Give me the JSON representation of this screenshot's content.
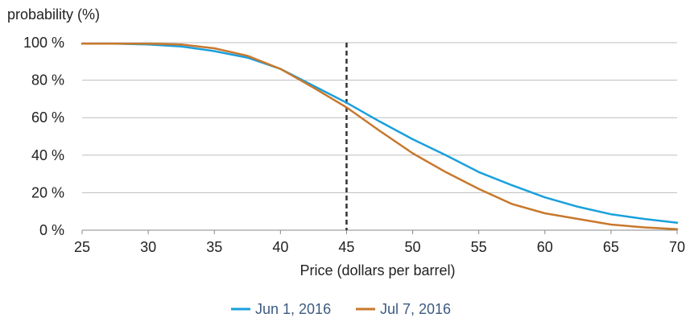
{
  "chart_data": {
    "type": "line",
    "ylabel": "probability (%)",
    "xlabel": "Price (dollars per barrel)",
    "xlim": [
      25,
      70
    ],
    "ylim": [
      0,
      100
    ],
    "x_ticks": [
      25,
      30,
      35,
      40,
      45,
      50,
      55,
      60,
      65,
      70
    ],
    "y_ticks": [
      0,
      20,
      40,
      60,
      80,
      100
    ],
    "y_tick_labels": [
      "0 %",
      "20 %",
      "40 %",
      "60 %",
      "80 %",
      "100 %"
    ],
    "grid": "horizontal",
    "reference_line_x": 45,
    "legend_position": "bottom-center",
    "series": [
      {
        "name": "Jun 1, 2016",
        "color": "#1aa0dc",
        "x": [
          25,
          27.5,
          30,
          32.5,
          35,
          37.5,
          40,
          42.5,
          45,
          47.5,
          50,
          52.5,
          55,
          57.5,
          60,
          62.5,
          65,
          67.5,
          70
        ],
        "y": [
          99.5,
          99.5,
          99,
          98,
          95.5,
          92,
          86,
          77,
          68,
          58,
          48.5,
          40,
          31,
          24,
          17.5,
          12.5,
          8.5,
          6,
          4
        ]
      },
      {
        "name": "Jul 7, 2016",
        "color": "#c8782d",
        "x": [
          25,
          27.5,
          30,
          32.5,
          35,
          37.5,
          40,
          42.5,
          45,
          47.5,
          50,
          52.5,
          55,
          57.5,
          60,
          62.5,
          65,
          67.5,
          70
        ],
        "y": [
          99.5,
          99.5,
          99.5,
          99,
          97,
          93,
          86,
          76,
          65.5,
          53,
          41,
          31,
          22,
          14,
          9,
          6,
          3,
          1.5,
          0.5
        ]
      }
    ]
  }
}
